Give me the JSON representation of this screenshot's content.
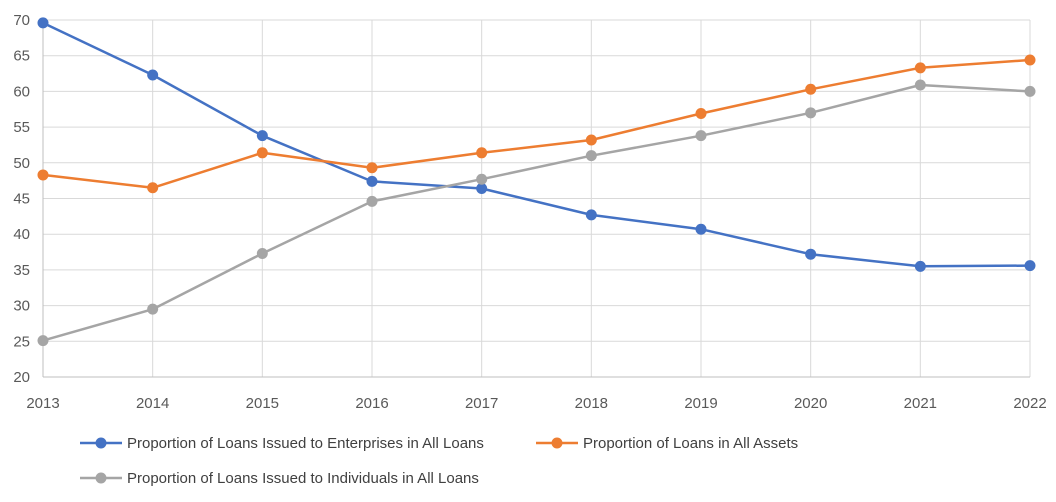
{
  "chart_data": {
    "type": "line",
    "title": "",
    "xlabel": "",
    "ylabel": "",
    "x": [
      "2013",
      "2014",
      "2015",
      "2016",
      "2017",
      "2018",
      "2019",
      "2020",
      "2021",
      "2022"
    ],
    "ylim": [
      20,
      70
    ],
    "yticks": [
      20,
      25,
      30,
      35,
      40,
      45,
      50,
      55,
      60,
      65,
      70
    ],
    "grid": true,
    "legend_position": "bottom",
    "series": [
      {
        "name": "Proportion of Loans Issued to Enterprises in All Loans",
        "color": "#4472c4",
        "values": [
          69.6,
          62.3,
          53.8,
          47.4,
          46.4,
          42.7,
          40.7,
          37.2,
          35.5,
          35.6
        ]
      },
      {
        "name": "Proportion of Loans in All Assets",
        "color": "#ed7d31",
        "values": [
          48.3,
          46.5,
          51.4,
          49.3,
          51.4,
          53.2,
          56.9,
          60.3,
          63.3,
          64.4
        ]
      },
      {
        "name": "Proportion of Loans Issued to Individuals in All Loans",
        "color": "#a5a5a5",
        "values": [
          25.1,
          29.5,
          37.3,
          44.6,
          47.7,
          51.0,
          53.8,
          57.0,
          60.9,
          60.0
        ]
      }
    ]
  }
}
